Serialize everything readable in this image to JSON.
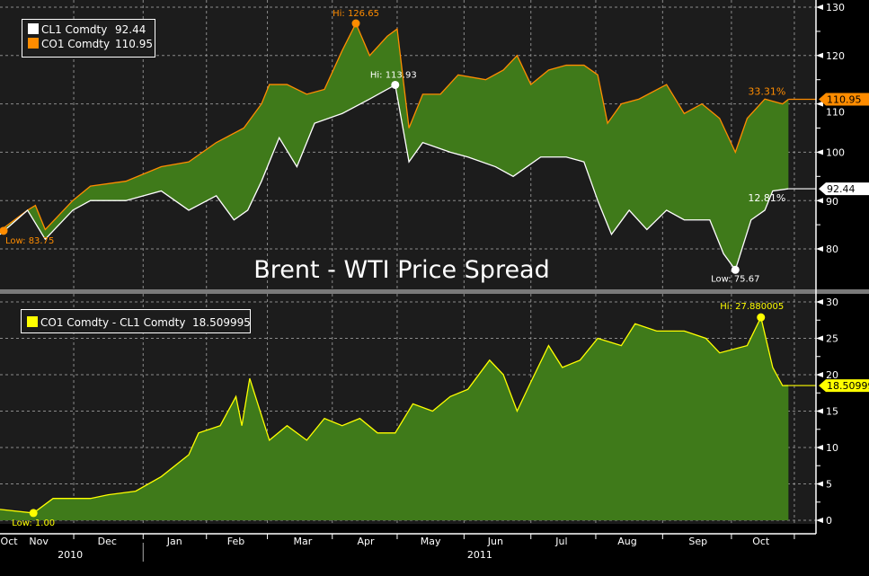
{
  "chart_data": [
    {
      "type": "area",
      "title": "Brent - WTI Price Spread",
      "x_unit": "days",
      "ylim": [
        72,
        131
      ],
      "yticks": [
        80,
        90,
        100,
        110,
        120,
        130
      ],
      "grid": true,
      "legend_position": "top-left",
      "series": [
        {
          "name": "CL1 Comdty",
          "last": "92.44",
          "color": "#ffffff",
          "change_label": "12.81%",
          "points": [
            [
              0,
              83
            ],
            [
              14,
              88
            ],
            [
              23,
              82
            ],
            [
              37,
              88
            ],
            [
              46,
              90
            ],
            [
              64,
              90
            ],
            [
              82,
              92
            ],
            [
              96,
              88
            ],
            [
              110,
              91
            ],
            [
              119,
              86
            ],
            [
              126,
              88
            ],
            [
              133,
              94
            ],
            [
              142,
              103
            ],
            [
              151,
              97
            ],
            [
              160,
              106
            ],
            [
              174,
              108
            ],
            [
              188,
              111
            ],
            [
              201,
              113.93
            ],
            [
              208,
              98
            ],
            [
              215,
              102
            ],
            [
              229,
              100
            ],
            [
              238,
              99
            ],
            [
              252,
              97
            ],
            [
              261,
              95
            ],
            [
              275,
              99
            ],
            [
              288,
              99
            ],
            [
              297,
              98
            ],
            [
              304,
              90
            ],
            [
              311,
              83
            ],
            [
              320,
              88
            ],
            [
              329,
              84
            ],
            [
              339,
              88
            ],
            [
              348,
              86
            ],
            [
              361,
              86
            ],
            [
              368,
              79
            ],
            [
              374,
              75.67
            ],
            [
              382,
              86
            ],
            [
              389,
              88
            ],
            [
              393,
              92
            ],
            [
              401,
              92.44
            ]
          ],
          "annotations": [
            {
              "label": "Hi: 113.93",
              "x": 201,
              "y": 113.93
            },
            {
              "label": "Low: 75.67",
              "x": 374,
              "y": 75.67
            }
          ]
        },
        {
          "name": "CO1 Comdty",
          "last": "110.95",
          "color": "#ff8c00",
          "change_label": "33.31%",
          "points": [
            [
              0,
              83.75
            ],
            [
              14,
              88
            ],
            [
              18,
              89
            ],
            [
              23,
              84
            ],
            [
              37,
              90
            ],
            [
              46,
              93
            ],
            [
              64,
              94
            ],
            [
              82,
              97
            ],
            [
              96,
              98
            ],
            [
              110,
              102
            ],
            [
              124,
              105
            ],
            [
              133,
              110
            ],
            [
              137,
              114
            ],
            [
              146,
              114
            ],
            [
              156,
              112
            ],
            [
              165,
              113
            ],
            [
              174,
              121
            ],
            [
              181,
              126.65
            ],
            [
              188,
              120
            ],
            [
              197,
              124
            ],
            [
              202,
              125.5
            ],
            [
              208,
              105
            ],
            [
              215,
              112
            ],
            [
              224,
              112
            ],
            [
              233,
              116
            ],
            [
              247,
              115
            ],
            [
              256,
              117
            ],
            [
              263,
              120
            ],
            [
              270,
              114
            ],
            [
              279,
              117
            ],
            [
              288,
              118
            ],
            [
              297,
              118
            ],
            [
              304,
              116
            ],
            [
              309,
              106
            ],
            [
              316,
              110
            ],
            [
              325,
              111
            ],
            [
              339,
              114
            ],
            [
              348,
              108
            ],
            [
              357,
              110
            ],
            [
              366,
              107
            ],
            [
              374,
              100
            ],
            [
              380,
              107
            ],
            [
              389,
              111
            ],
            [
              398,
              110
            ],
            [
              401,
              110.95
            ]
          ],
          "annotations": [
            {
              "label": "Hi: 126.65",
              "x": 181,
              "y": 126.65
            },
            {
              "label": "Low: 83.75",
              "x": 0,
              "y": 83.75
            }
          ]
        }
      ]
    },
    {
      "type": "area",
      "title": "",
      "ylim": [
        0,
        31
      ],
      "yticks": [
        0,
        5,
        10,
        15,
        20,
        25,
        30
      ],
      "grid": true,
      "legend_position": "top-left",
      "series": [
        {
          "name": "CO1 Comdty - CL1 Comdty",
          "last": "18.509995",
          "color": "#ffff00",
          "points": [
            [
              0,
              1.5
            ],
            [
              17,
              1.0
            ],
            [
              27,
              3
            ],
            [
              46,
              3
            ],
            [
              55,
              3.5
            ],
            [
              69,
              4
            ],
            [
              82,
              6
            ],
            [
              96,
              9
            ],
            [
              101,
              12
            ],
            [
              112,
              13
            ],
            [
              120,
              17
            ],
            [
              123,
              13
            ],
            [
              127,
              19.5
            ],
            [
              137,
              11
            ],
            [
              146,
              13
            ],
            [
              156,
              11
            ],
            [
              165,
              14
            ],
            [
              174,
              13
            ],
            [
              183,
              14
            ],
            [
              192,
              12
            ],
            [
              201,
              12
            ],
            [
              210,
              16
            ],
            [
              220,
              15
            ],
            [
              229,
              17
            ],
            [
              238,
              18
            ],
            [
              249,
              22
            ],
            [
              256,
              20
            ],
            [
              263,
              15
            ],
            [
              270,
              19
            ],
            [
              279,
              24
            ],
            [
              286,
              21
            ],
            [
              295,
              22
            ],
            [
              304,
              25
            ],
            [
              316,
              24
            ],
            [
              323,
              27
            ],
            [
              334,
              26
            ],
            [
              348,
              26
            ],
            [
              359,
              25
            ],
            [
              366,
              23
            ],
            [
              380,
              24
            ],
            [
              387,
              27.88
            ],
            [
              393,
              21
            ],
            [
              398,
              18.5
            ],
            [
              401,
              18.51
            ]
          ],
          "annotations": [
            {
              "label": "Low: 1.00",
              "x": 17,
              "y": 1.0
            },
            {
              "label": "Hi: 27.880005",
              "x": 387,
              "y": 27.88
            }
          ]
        }
      ]
    }
  ],
  "x_axis": {
    "range": [
      0,
      415
    ],
    "month_ticks": [
      37.5,
      72.8,
      105,
      136,
      169,
      202,
      236,
      270,
      303,
      337,
      372,
      404
    ],
    "months": [
      {
        "label": "Oct",
        "x": 4.6
      },
      {
        "label": "Nov",
        "x": 19.7
      },
      {
        "label": "Dec",
        "x": 54.5
      },
      {
        "label": "Jan",
        "x": 88.8
      },
      {
        "label": "Feb",
        "x": 120
      },
      {
        "label": "Mar",
        "x": 154
      },
      {
        "label": "Apr",
        "x": 186
      },
      {
        "label": "May",
        "x": 219
      },
      {
        "label": "Jun",
        "x": 252
      },
      {
        "label": "Jul",
        "x": 285.6
      },
      {
        "label": "Aug",
        "x": 319
      },
      {
        "label": "Sep",
        "x": 355
      },
      {
        "label": "Oct",
        "x": 387
      }
    ],
    "years": [
      {
        "label": "2010",
        "x": 35.7
      },
      {
        "label": "2011",
        "x": 244
      }
    ],
    "year_separator": 72.8
  },
  "colors": {
    "fill": "#3f7a1a",
    "plot_bg": "#1c1c1c",
    "grid": "#8a8a8a"
  }
}
